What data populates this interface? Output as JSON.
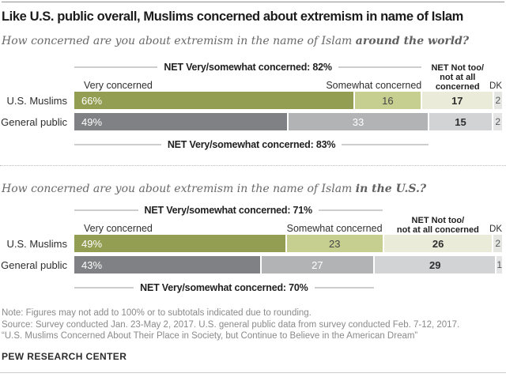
{
  "title": "Like U.S. public overall, Muslims concerned about extremism in name of Islam",
  "charts": [
    {
      "question_prefix": "How concerned are you about extremism in the name of Islam ",
      "question_emphasis": "around the world?",
      "net_top_label": "NET Very/somewhat concerned: 82%",
      "net_bottom_label": "NET Very/somewhat concerned: 83%",
      "headers": {
        "very": "Very concerned",
        "somewhat": "Somewhat concerned",
        "net_not_lines": [
          "NET Not too/",
          "not at all",
          "concerned"
        ],
        "dk": "DK"
      },
      "rows": [
        {
          "label": "U.S. Muslims",
          "palette": "green",
          "values": [
            66,
            16,
            17,
            2
          ],
          "display": [
            "66%",
            "16",
            "17",
            "2"
          ]
        },
        {
          "label": "General public",
          "palette": "gray",
          "values": [
            49,
            33,
            15,
            2
          ],
          "display": [
            "49%",
            "33",
            "15",
            "2"
          ]
        }
      ]
    },
    {
      "question_prefix": "How concerned are you about extremism in the name of Islam ",
      "question_emphasis": "in the U.S.?",
      "net_top_label": "NET Very/somewhat concerned: 71%",
      "net_bottom_label": "NET Very/somewhat concerned: 70%",
      "headers": {
        "very": "Very concerned",
        "somewhat": "Somewhat concerned",
        "net_not_lines": [
          "NET Not too/",
          "not at all concerned"
        ],
        "dk": "DK"
      },
      "rows": [
        {
          "label": "U.S. Muslims",
          "palette": "green",
          "values": [
            49,
            23,
            26,
            2
          ],
          "display": [
            "49%",
            "23",
            "26",
            "2"
          ]
        },
        {
          "label": "General public",
          "palette": "gray",
          "values": [
            43,
            27,
            29,
            1
          ],
          "display": [
            "43%",
            "27",
            "29",
            "1"
          ]
        }
      ]
    }
  ],
  "colors": {
    "green": [
      "#949e52",
      "#c7cf90",
      "#eaebd8",
      "#e5e5e1"
    ],
    "green_text": [
      "#ffffff",
      "#454545",
      "#2e2e2e",
      "#55595c"
    ],
    "gray": [
      "#7f8184",
      "#b1b3b5",
      "#d2d3d4",
      "#e4e4e4"
    ],
    "gray_text": [
      "#ffffff",
      "#ffffff",
      "#2e2e2e",
      "#55595c"
    ]
  },
  "notes": [
    "Note: Figures may not add to 100% or to subtotals indicated due to rounding.",
    "Source: Survey conducted Jan. 23-May 2, 2017. U.S. general public data from survey conducted Feb. 7-12, 2017.",
    "“U.S. Muslims Concerned About Their Place in Society, but Continue to Believe in the American Dream”"
  ],
  "footer": "PEW RESEARCH CENTER",
  "chart_data": [
    {
      "type": "bar",
      "orientation": "horizontal",
      "stacked": true,
      "title": "How concerned are you about extremism in the name of Islam around the world?",
      "categories": [
        "U.S. Muslims",
        "General public"
      ],
      "series": [
        {
          "name": "Very concerned",
          "values": [
            66,
            49
          ]
        },
        {
          "name": "Somewhat concerned",
          "values": [
            16,
            33
          ]
        },
        {
          "name": "NET Not too/not at all concerned",
          "values": [
            17,
            15
          ]
        },
        {
          "name": "DK",
          "values": [
            2,
            2
          ]
        }
      ],
      "annotations": [
        "NET Very/somewhat concerned: 82% (U.S. Muslims)",
        "NET Very/somewhat concerned: 83% (General public)"
      ],
      "xlim": [
        0,
        100
      ],
      "legend_position": "column headers above bars",
      "grid": false
    },
    {
      "type": "bar",
      "orientation": "horizontal",
      "stacked": true,
      "title": "How concerned are you about extremism in the name of Islam in the U.S.?",
      "categories": [
        "U.S. Muslims",
        "General public"
      ],
      "series": [
        {
          "name": "Very concerned",
          "values": [
            49,
            43
          ]
        },
        {
          "name": "Somewhat concerned",
          "values": [
            23,
            27
          ]
        },
        {
          "name": "NET Not too/not at all concerned",
          "values": [
            26,
            29
          ]
        },
        {
          "name": "DK",
          "values": [
            2,
            1
          ]
        }
      ],
      "annotations": [
        "NET Very/somewhat concerned: 71% (U.S. Muslims)",
        "NET Very/somewhat concerned: 70% (General public)"
      ],
      "xlim": [
        0,
        100
      ],
      "legend_position": "column headers above bars",
      "grid": false
    }
  ]
}
